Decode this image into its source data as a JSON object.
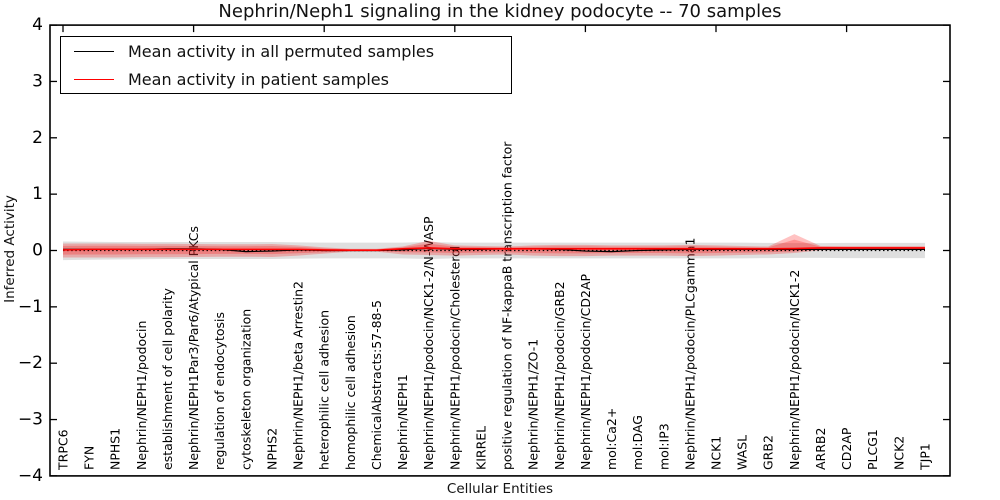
{
  "chart_data": {
    "type": "line",
    "title": "Nephrin/Neph1 signaling in the kidney podocyte -- 70 samples",
    "xlabel": "Cellular Entities",
    "ylabel": "Inferred Activity",
    "ylim": [
      -4,
      4
    ],
    "y_ticks": [
      "4",
      "3",
      "2",
      "1",
      "0",
      "−1",
      "−2",
      "−3",
      "−4"
    ],
    "y_tick_values": [
      4,
      3,
      2,
      1,
      0,
      -1,
      -2,
      -3,
      -4
    ],
    "x_major_tick_step": 5,
    "grid": false,
    "legend_position": "upper left",
    "zero_line": 0.0,
    "categories": [
      "TRPC6",
      "FYN",
      "NPHS1",
      "Nephrin/NEPH1/podocin",
      "establishment of cell polarity",
      "Nephrin/NEPH1Par3/Par6/Atypical PKCs",
      "regulation of endocytosis",
      "cytoskeleton organization",
      "NPHS2",
      "Nephrin/NEPH1/beta Arrestin2",
      "heterophilic cell adhesion",
      "homophilic cell adhesion",
      "ChemicalAbstracts:57-88-5",
      "Nephrin/NEPH1",
      "Nephrin/NEPH1/podocin/NCK1-2/N-WASP",
      "Nephrin/NEPH1/podocin/Cholesterol",
      "KIRREL",
      "positive regulation of NF-kappaB transcription factor",
      "Nephrin/NEPH1/ZO-1",
      "Nephrin/NEPH1/podocin/GRB2",
      "Nephrin/NEPH1/podocin/CD2AP",
      "mol:Ca2+",
      "mol:DAG",
      "mol:IP3",
      "Nephrin/NEPH1/podocin/PLCgamma1",
      "NCK1",
      "WASL",
      "GRB2",
      "Nephrin/NEPH1/podocin/NCK1-2",
      "ARRB2",
      "CD2AP",
      "PLCG1",
      "NCK2",
      "TJP1"
    ],
    "series": [
      {
        "name": "Mean activity in all permuted samples",
        "color": "#000000",
        "values": [
          0.02,
          0.02,
          0.02,
          0.02,
          0.03,
          0.03,
          0.02,
          -0.02,
          -0.01,
          0.01,
          0.0,
          0.0,
          0.0,
          0.01,
          0.04,
          0.02,
          0.02,
          0.03,
          0.03,
          0.02,
          -0.01,
          -0.02,
          0.0,
          0.01,
          0.02,
          0.02,
          0.02,
          0.02,
          0.02,
          0.02,
          0.02,
          0.02,
          0.02,
          0.02
        ]
      },
      {
        "name": "Mean activity in patient samples",
        "color": "#ff0000",
        "values": [
          0.01,
          0.02,
          0.02,
          0.02,
          0.02,
          0.02,
          0.02,
          0.02,
          0.02,
          0.02,
          0.01,
          0.005,
          0.005,
          0.03,
          0.045,
          0.03,
          0.03,
          0.03,
          0.03,
          0.03,
          0.03,
          0.03,
          0.03,
          0.03,
          0.03,
          0.03,
          0.03,
          0.03,
          0.035,
          0.045,
          0.045,
          0.045,
          0.045,
          0.045
        ]
      }
    ],
    "bands": [
      {
        "name": "permuted-std-band",
        "color": "#808080",
        "alpha": 0.25,
        "upper": [
          0.16,
          0.155,
          0.15,
          0.15,
          0.15,
          0.15,
          0.15,
          0.15,
          0.15,
          0.145,
          0.14,
          0.14,
          0.14,
          0.14,
          0.15,
          0.14,
          0.14,
          0.14,
          0.14,
          0.14,
          0.14,
          0.14,
          0.14,
          0.14,
          0.14,
          0.14,
          0.14,
          0.135,
          0.13,
          0.13,
          0.135,
          0.135,
          0.135,
          0.135
        ],
        "lower": [
          -0.17,
          -0.165,
          -0.16,
          -0.155,
          -0.15,
          -0.15,
          -0.15,
          -0.15,
          -0.15,
          -0.145,
          -0.14,
          -0.14,
          -0.14,
          -0.14,
          -0.15,
          -0.14,
          -0.14,
          -0.14,
          -0.14,
          -0.14,
          -0.14,
          -0.14,
          -0.14,
          -0.14,
          -0.14,
          -0.14,
          -0.14,
          -0.135,
          -0.13,
          -0.13,
          -0.135,
          -0.135,
          -0.135,
          -0.135
        ]
      },
      {
        "name": "patient-std-band",
        "color": "#ff0000",
        "alpha": 0.24,
        "inner_core_factor": 0.62,
        "upper": [
          0.125,
          0.125,
          0.125,
          0.12,
          0.12,
          0.115,
          0.11,
          0.11,
          0.115,
          0.09,
          0.055,
          0.03,
          0.03,
          0.07,
          0.17,
          0.09,
          0.08,
          0.07,
          0.09,
          0.1,
          0.1,
          0.09,
          0.09,
          0.09,
          0.1,
          0.09,
          0.08,
          0.07,
          0.29,
          0.08,
          0.075,
          0.075,
          0.075,
          0.075
        ],
        "lower": [
          -0.125,
          -0.125,
          -0.125,
          -0.12,
          -0.12,
          -0.115,
          -0.11,
          -0.11,
          -0.115,
          -0.09,
          -0.055,
          -0.02,
          -0.02,
          -0.07,
          -0.08,
          -0.09,
          -0.08,
          -0.07,
          -0.09,
          -0.1,
          -0.1,
          -0.09,
          -0.09,
          -0.09,
          -0.1,
          -0.09,
          -0.08,
          -0.07,
          -0.045,
          0.005,
          0.01,
          0.01,
          0.01,
          0.01
        ]
      }
    ]
  },
  "colors": {
    "frame": "#000000",
    "zero_line": "#000000",
    "background": "#ffffff"
  }
}
